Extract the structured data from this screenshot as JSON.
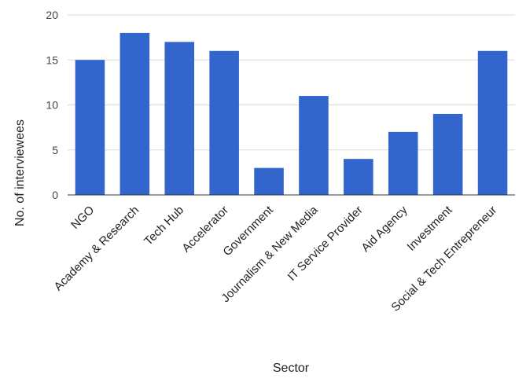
{
  "chart_data": {
    "type": "bar",
    "title": "",
    "xlabel": "Sector",
    "ylabel": "No. of interviewees",
    "ylim": [
      0,
      20
    ],
    "yticks": [
      0,
      5,
      10,
      15,
      20
    ],
    "grid": true,
    "legend": "none",
    "bar_color": "#3366cc",
    "categories": [
      "NGO",
      "Academy & Research",
      "Tech Hub",
      "Accelerator",
      "Government",
      "Journalism & New Media",
      "IT Service Provider",
      "Aid Agency",
      "Investment",
      "Social & Tech Entrepreneur"
    ],
    "values": [
      15,
      18,
      17,
      16,
      3,
      11,
      4,
      7,
      9,
      16
    ]
  }
}
